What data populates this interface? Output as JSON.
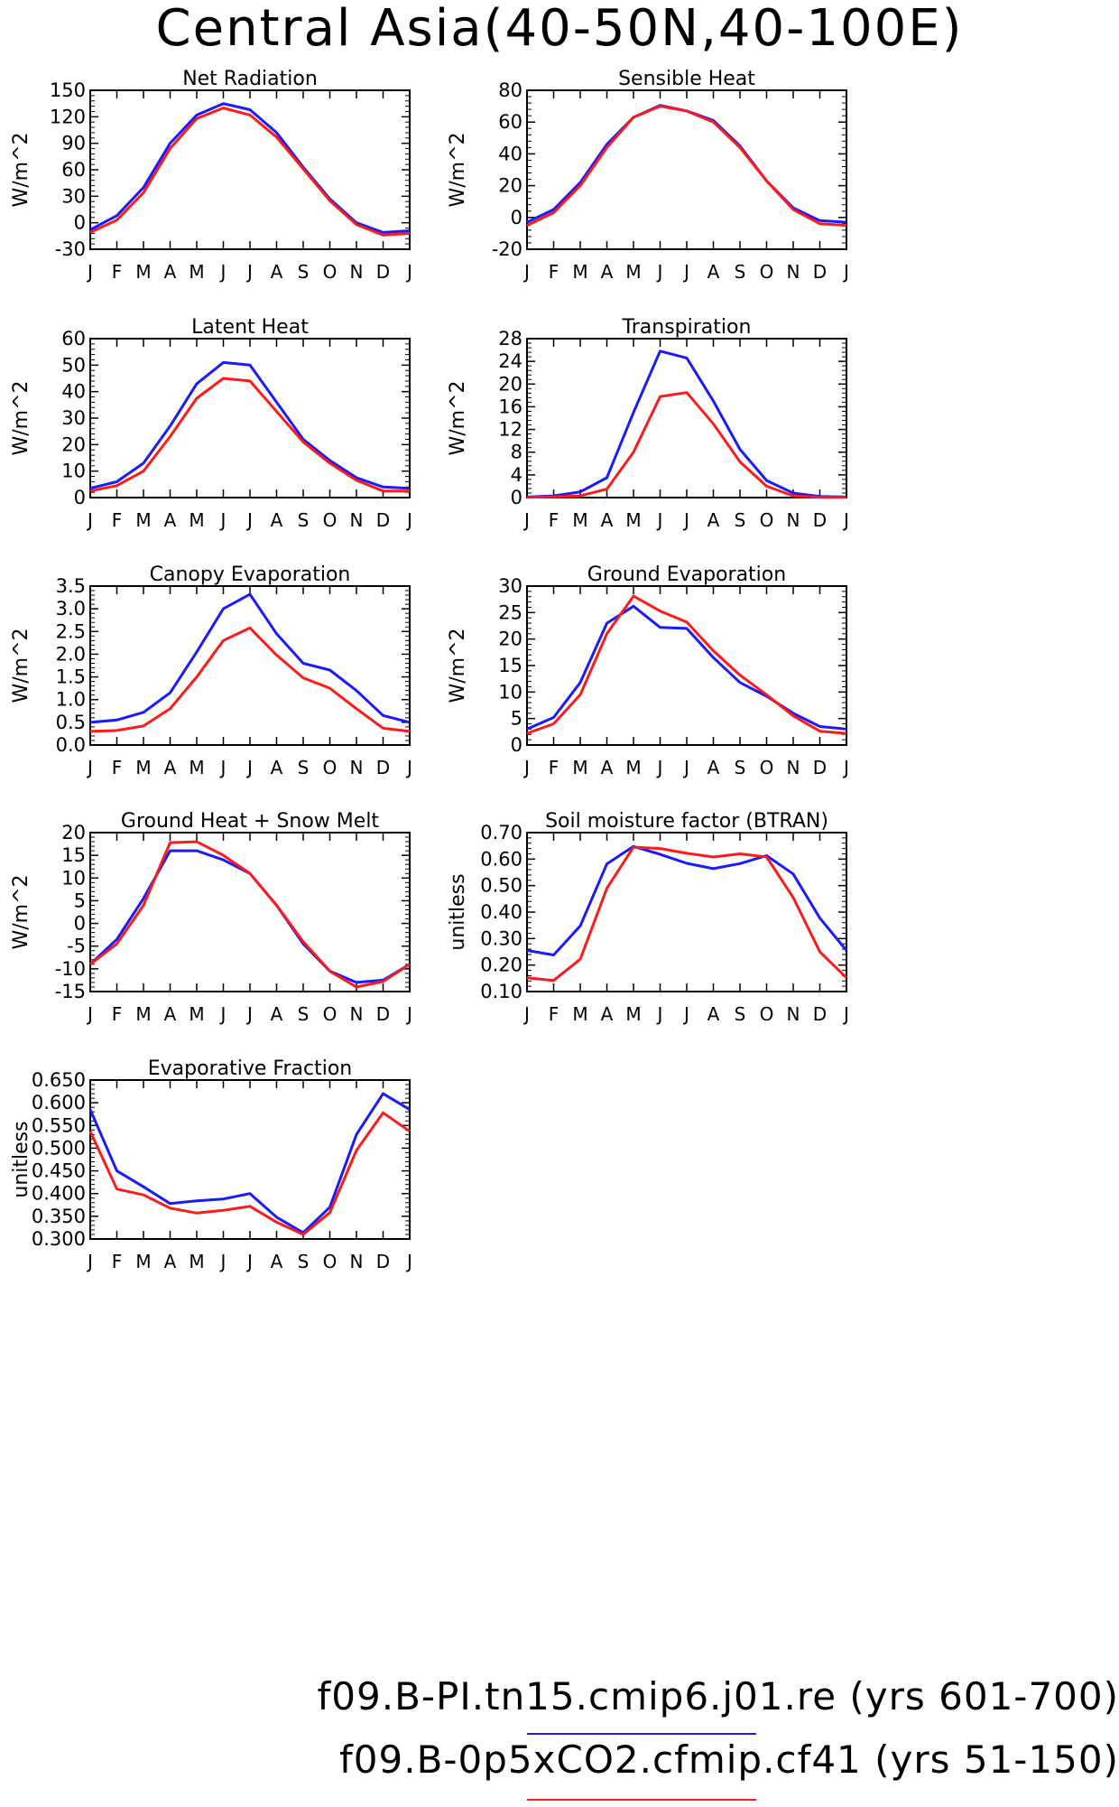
{
  "figure_title": "Central Asia(40-50N,40-100E)",
  "legend": [
    {
      "label": "f09.B-PI.tn15.cmip6.j01.re (yrs 601-700)",
      "color": "#1a1aff"
    },
    {
      "label": "f09.B-0p5xCO2.cfmip.cf41 (yrs 51-150)",
      "color": "#ff1a1a"
    }
  ],
  "month_labels": [
    "J",
    "F",
    "M",
    "A",
    "M",
    "J",
    "J",
    "A",
    "S",
    "O",
    "N",
    "D",
    "J"
  ],
  "chart_data": [
    {
      "type": "line",
      "title": "Net Radiation",
      "ylabel": "W/m^2",
      "ylim": [
        -30,
        150
      ],
      "yticks": [
        "-30",
        "0",
        "30",
        "60",
        "90",
        "120",
        "150"
      ],
      "series": [
        {
          "color": "#1a1aff",
          "values": [
            -8,
            8,
            40,
            90,
            122,
            135,
            128,
            102,
            63,
            27,
            0,
            -11,
            -9
          ]
        },
        {
          "color": "#ff1a1a",
          "values": [
            -11,
            3,
            34,
            84,
            118,
            130,
            122,
            97,
            61,
            25,
            -2,
            -14,
            -12
          ]
        }
      ]
    },
    {
      "type": "line",
      "title": "Sensible Heat",
      "ylabel": "W/m^2",
      "ylim": [
        -20,
        80
      ],
      "yticks": [
        "-20",
        "0",
        "20",
        "40",
        "60",
        "80"
      ],
      "series": [
        {
          "color": "#1a1aff",
          "values": [
            -3,
            5,
            22,
            46,
            63,
            70.5,
            67,
            61,
            45,
            23,
            6,
            -2,
            -3
          ]
        },
        {
          "color": "#ff1a1a",
          "values": [
            -5,
            3,
            20,
            44,
            63,
            70,
            67,
            60,
            44,
            23,
            5,
            -4,
            -5
          ]
        }
      ]
    },
    {
      "type": "line",
      "title": "Latent Heat",
      "ylabel": "W/m^2",
      "ylim": [
        0,
        60
      ],
      "yticks": [
        "0",
        "10",
        "20",
        "30",
        "40",
        "50",
        "60"
      ],
      "series": [
        {
          "color": "#1a1aff",
          "values": [
            3.5,
            6,
            13,
            27,
            43,
            51,
            50,
            36,
            22,
            14,
            7.5,
            4,
            3.5
          ]
        },
        {
          "color": "#ff1a1a",
          "values": [
            2.5,
            4.5,
            10,
            23,
            37.5,
            45,
            44,
            32.5,
            21,
            13,
            6.5,
            2.5,
            2.5
          ]
        }
      ]
    },
    {
      "type": "line",
      "title": "Transpiration",
      "ylabel": "W/m^2",
      "ylim": [
        0,
        28
      ],
      "yticks": [
        "0",
        "4",
        "8",
        "12",
        "16",
        "20",
        "24",
        "28"
      ],
      "series": [
        {
          "color": "#1a1aff",
          "values": [
            0.1,
            0.3,
            1,
            3.5,
            15,
            25.8,
            24.6,
            17,
            8.5,
            3,
            0.8,
            0.2,
            0.1
          ]
        },
        {
          "color": "#ff1a1a",
          "values": [
            0.05,
            0.15,
            0.3,
            1.5,
            8,
            17.8,
            18.5,
            13,
            6.3,
            2,
            0.3,
            0.05,
            0.05
          ]
        }
      ]
    },
    {
      "type": "line",
      "title": "Canopy Evaporation",
      "ylabel": "W/m^2",
      "ylim": [
        0,
        3.5
      ],
      "yticks": [
        "0.0",
        "0.5",
        "1.0",
        "1.5",
        "2.0",
        "2.5",
        "3.0",
        "3.5"
      ],
      "series": [
        {
          "color": "#1a1aff",
          "values": [
            0.5,
            0.55,
            0.72,
            1.15,
            2.05,
            3.0,
            3.32,
            2.45,
            1.8,
            1.65,
            1.2,
            0.65,
            0.5
          ]
        },
        {
          "color": "#ff1a1a",
          "values": [
            0.3,
            0.32,
            0.42,
            0.8,
            1.5,
            2.3,
            2.58,
            1.98,
            1.48,
            1.25,
            0.8,
            0.37,
            0.3
          ]
        }
      ]
    },
    {
      "type": "line",
      "title": "Ground Evaporation",
      "ylabel": "W/m^2",
      "ylim": [
        0,
        30
      ],
      "yticks": [
        "0",
        "5",
        "10",
        "15",
        "20",
        "25",
        "30"
      ],
      "series": [
        {
          "color": "#1a1aff",
          "values": [
            3,
            5.2,
            11.8,
            23,
            26.2,
            22.2,
            22,
            16.5,
            11.8,
            9.2,
            6,
            3.5,
            3
          ]
        },
        {
          "color": "#ff1a1a",
          "values": [
            2.2,
            4,
            9.5,
            21,
            28.1,
            25.3,
            23.2,
            17.8,
            13.2,
            9.5,
            5.5,
            2.6,
            2.2
          ]
        }
      ]
    },
    {
      "type": "line",
      "title": "Ground Heat + Snow Melt",
      "ylabel": "W/m^2",
      "ylim": [
        -15,
        20
      ],
      "yticks": [
        "-15",
        "-10",
        "-5",
        "0",
        "5",
        "10",
        "15",
        "20"
      ],
      "series": [
        {
          "color": "#1a1aff",
          "values": [
            -9,
            -3.5,
            5.5,
            16,
            16,
            14,
            11,
            4,
            -4.5,
            -10.5,
            -13,
            -12.5,
            -9
          ]
        },
        {
          "color": "#ff1a1a",
          "values": [
            -9,
            -4.5,
            4,
            17.8,
            18,
            15,
            11,
            4,
            -4,
            -10.5,
            -14,
            -12.8,
            -9
          ]
        }
      ]
    },
    {
      "type": "line",
      "title": "Soil moisture factor (BTRAN)",
      "ylabel": "unitless",
      "ylim": [
        0.1,
        0.7
      ],
      "yticks": [
        "0.10",
        "0.20",
        "0.30",
        "0.40",
        "0.50",
        "0.60",
        "0.70"
      ],
      "series": [
        {
          "color": "#1a1aff",
          "values": [
            0.255,
            0.238,
            0.348,
            0.582,
            0.648,
            0.618,
            0.584,
            0.564,
            0.583,
            0.613,
            0.544,
            0.377,
            0.255
          ]
        },
        {
          "color": "#ff1a1a",
          "values": [
            0.152,
            0.142,
            0.222,
            0.49,
            0.645,
            0.64,
            0.622,
            0.608,
            0.62,
            0.608,
            0.455,
            0.25,
            0.152
          ]
        }
      ]
    },
    {
      "type": "line",
      "title": "Evaporative Fraction",
      "ylabel": "unitless",
      "ylim": [
        0.3,
        0.65
      ],
      "yticks": [
        "0.300",
        "0.350",
        "0.400",
        "0.450",
        "0.500",
        "0.550",
        "0.600",
        "0.650"
      ],
      "series": [
        {
          "color": "#1a1aff",
          "values": [
            0.585,
            0.45,
            0.415,
            0.378,
            0.384,
            0.388,
            0.4,
            0.348,
            0.314,
            0.37,
            0.53,
            0.62,
            0.585
          ]
        },
        {
          "color": "#ff1a1a",
          "values": [
            0.537,
            0.41,
            0.397,
            0.368,
            0.357,
            0.363,
            0.372,
            0.337,
            0.31,
            0.358,
            0.495,
            0.578,
            0.537
          ]
        }
      ]
    }
  ]
}
